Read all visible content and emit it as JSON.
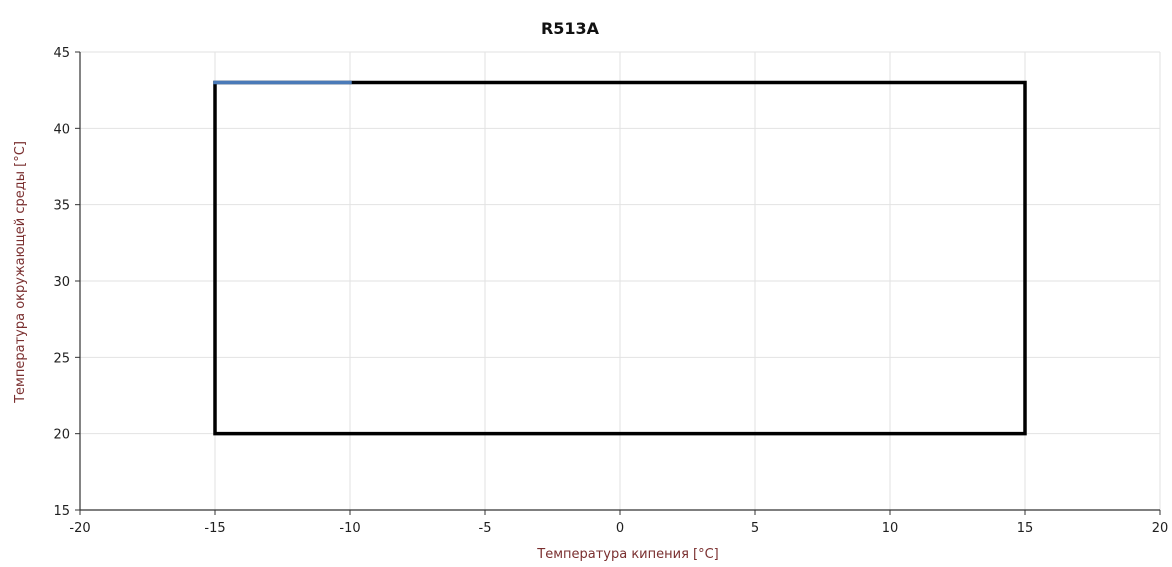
{
  "chart_data": {
    "type": "line",
    "title": "R513A",
    "xlabel": "Температура кипения [°C]",
    "ylabel": "Температура окружающей среды [°C]",
    "xlim": [
      -20,
      20
    ],
    "ylim": [
      15,
      45
    ],
    "x_ticks": [
      -20,
      -15,
      -10,
      -5,
      0,
      5,
      10,
      15,
      20
    ],
    "y_ticks": [
      15,
      20,
      25,
      30,
      35,
      40,
      45
    ],
    "grid": true,
    "legend": "none",
    "series": [
      {
        "color": "#000000",
        "x": [
          -15,
          15,
          15,
          -15,
          -15
        ],
        "y": [
          20,
          20,
          43,
          43,
          20
        ]
      },
      {
        "color": "#4a7ab8",
        "x": [
          -15,
          -10
        ],
        "y": [
          43,
          43
        ]
      }
    ],
    "colors": {
      "grid": "#e2e2e2",
      "axis": "#333333",
      "axis_label": "#7a2f2f",
      "tick_label": "#1f1f1f"
    }
  }
}
